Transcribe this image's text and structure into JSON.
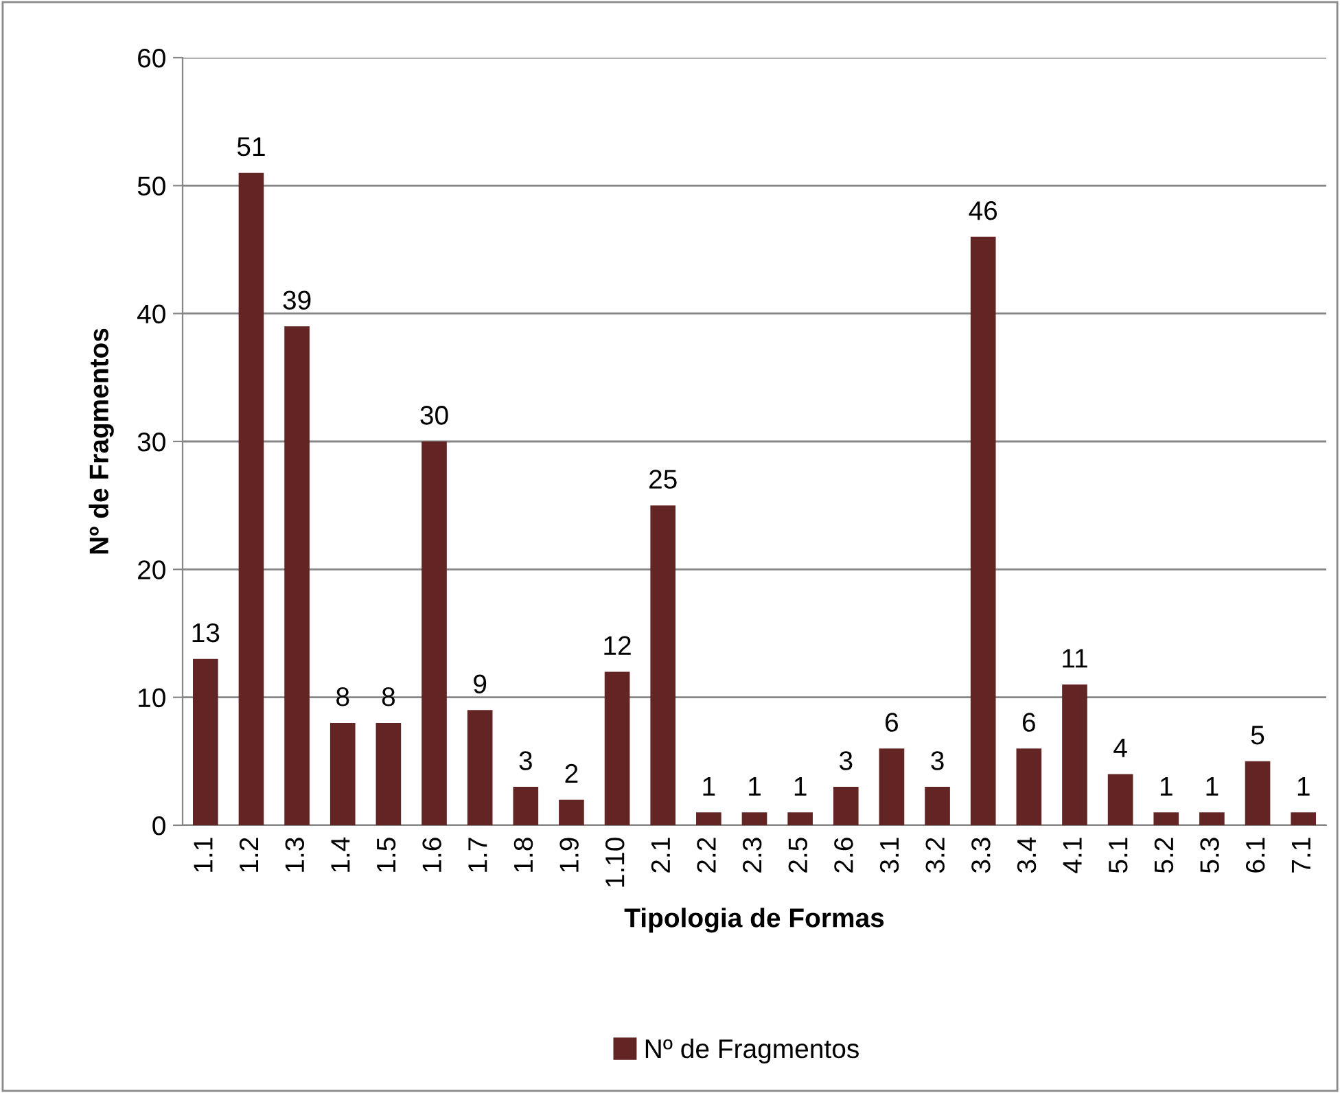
{
  "chart_data": {
    "type": "bar",
    "xlabel": "Tipologia de Formas",
    "ylabel": "Nº de Fragmentos",
    "categories": [
      "1.1",
      "1.2",
      "1.3",
      "1.4",
      "1.5",
      "1.6",
      "1.7",
      "1.8",
      "1.9",
      "1.10",
      "2.1",
      "2.2",
      "2.3",
      "2.5",
      "2.6",
      "3.1",
      "3.2",
      "3.3",
      "3.4",
      "4.1",
      "5.1",
      "5.2",
      "5.3",
      "6.1",
      "7.1"
    ],
    "series": [
      {
        "name": "Nº de Fragmentos",
        "color": "#632523",
        "values": [
          13,
          51,
          39,
          8,
          8,
          30,
          9,
          3,
          2,
          12,
          25,
          1,
          1,
          1,
          3,
          6,
          3,
          46,
          6,
          11,
          4,
          1,
          1,
          5,
          1
        ]
      }
    ],
    "ylim": [
      0,
      60
    ],
    "yticks": [
      0,
      10,
      20,
      30,
      40,
      50,
      60
    ],
    "grid": "y",
    "legend": "bottom",
    "data_labels": true
  }
}
